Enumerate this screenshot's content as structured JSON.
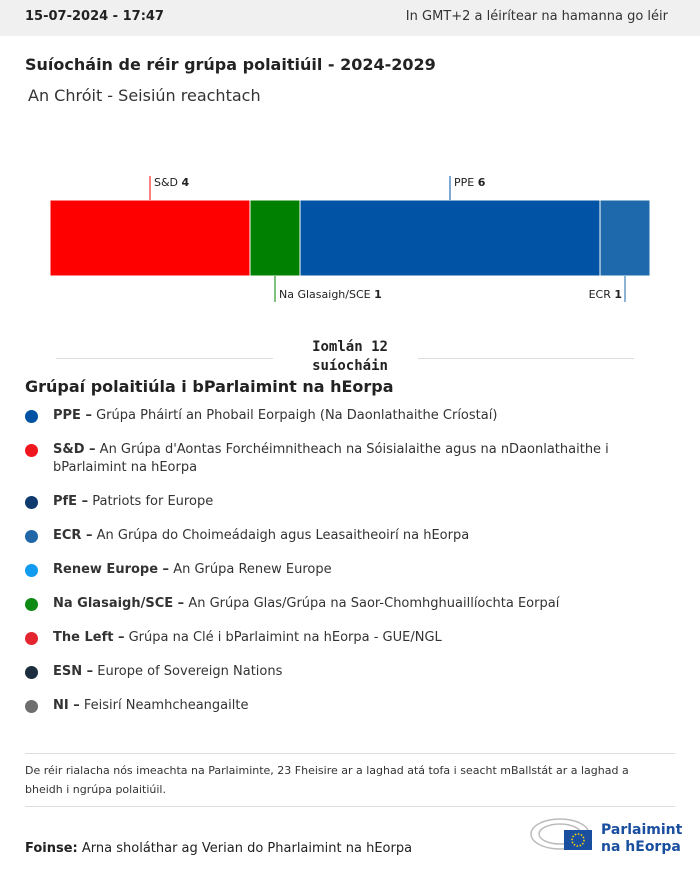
{
  "header": {
    "date": "15-07-2024 - 17:47",
    "timezone": "In GMT+2 a léirítear na hamanna go léir"
  },
  "chart_data": {
    "type": "stacked-bar",
    "title": "Suíocháin de réir grúpa polaitiúil - 2024-2029",
    "subtitle": "An Chróit - Seisiún reachtach",
    "series": [
      {
        "name": "S&D",
        "color": "#ff0000",
        "values": [
          4
        ]
      },
      {
        "name": "Na Glasaigh/SCE",
        "color": "#008000",
        "values": [
          1
        ]
      },
      {
        "name": "PPE",
        "color": "#0053a5",
        "values": [
          6
        ]
      },
      {
        "name": "ECR",
        "color": "#1d69ab",
        "values": [
          1
        ]
      }
    ],
    "total_text": "Iomlán 12 suíocháin"
  },
  "legend": {
    "title": "Grúpaí polaitiúla i bParlaimint na hEorpa",
    "items": [
      {
        "label": "PPE –",
        "text": "Grúpa Pháirtí an Phobail Eorpaigh (Na Daonlathaithe Críostaí)",
        "color": "#0052a2"
      },
      {
        "label": "S&D –",
        "text": "An Grúpa d'Aontas Forchéimnitheach na Sóisialaithe agus na nDaonlathaithe i bParlaimint na hEorpa",
        "color": "#f0161e"
      },
      {
        "label": "PfE –",
        "text": "Patriots for Europe",
        "color": "#0e3a6e"
      },
      {
        "label": "ECR –",
        "text": "An Grúpa do Choimeádaigh agus Leasaitheoirí na hEorpa",
        "color": "#1f67a7"
      },
      {
        "label": "Renew Europe –",
        "text": "An Grúpa Renew Europe",
        "color": "#109bf0"
      },
      {
        "label": "Na Glasaigh/SCE –",
        "text": "An Grúpa Glas/Grúpa na Saor-Chomhghuaillíochta Eorpaí",
        "color": "#0f8a14"
      },
      {
        "label": "The Left –",
        "text": "Grúpa na Clé i bParlaimint na hEorpa - GUE/NGL",
        "color": "#e42530"
      },
      {
        "label": "ESN –",
        "text": "Europe of Sovereign Nations",
        "color": "#1c2d3e"
      },
      {
        "label": "NI –",
        "text": "Feisirí Neamhcheangailte",
        "color": "#6e6e6e"
      }
    ]
  },
  "note": "De réir rialacha nós imeachta na Parlaiminte, 23 Fheisire ar a laghad atá tofa i seacht mBallstát ar a laghad a bheidh i ngrúpa polaitiúil.",
  "source": {
    "label": "Foinse:",
    "text": "Arna sholáthar ag Verian do Pharlaimint na hEorpa"
  },
  "logo": [
    "Parlaimint",
    "na hEorpa"
  ]
}
